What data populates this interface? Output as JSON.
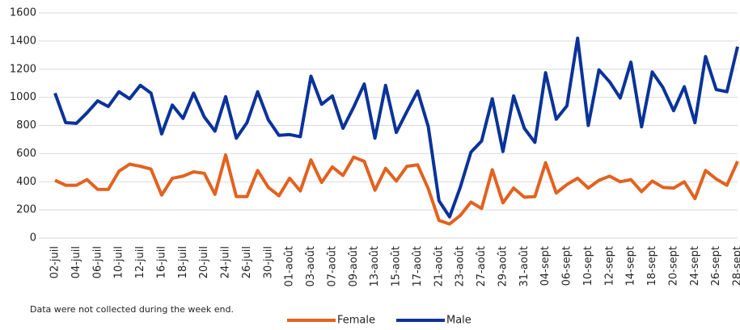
{
  "chart_data": {
    "type": "line",
    "categories": [
      "02-juil",
      null,
      "04-juil",
      null,
      "06-juil",
      null,
      "10-juil",
      null,
      "12-juil",
      null,
      "16-juil",
      null,
      "18-juil",
      null,
      "20-juil",
      null,
      "24-juil",
      null,
      "26-juil",
      null,
      "30-juil",
      null,
      "01-août",
      null,
      "03-août",
      null,
      "07-août",
      null,
      "09-août",
      null,
      "13-août",
      null,
      "15-août",
      null,
      "17-août",
      null,
      "21-août",
      null,
      "23-août",
      null,
      "27-août",
      null,
      "29-août",
      null,
      "31-août",
      null,
      "04-sept",
      null,
      "06-sept",
      null,
      "10-sept",
      null,
      "12-sept",
      null,
      "14-sept",
      null,
      "18-sept",
      null,
      "20-sept",
      null,
      "24-sept",
      null,
      "26-sept",
      null,
      "28-sept"
    ],
    "series": [
      {
        "name": "Female",
        "color": "#e2621f",
        "values": [
          410,
          375,
          375,
          415,
          345,
          345,
          475,
          525,
          510,
          490,
          305,
          425,
          440,
          470,
          460,
          310,
          590,
          295,
          295,
          480,
          360,
          300,
          425,
          335,
          555,
          395,
          505,
          445,
          575,
          545,
          340,
          495,
          405,
          510,
          520,
          350,
          125,
          100,
          160,
          255,
          210,
          485,
          250,
          355,
          290,
          295,
          535,
          320,
          380,
          425,
          355,
          410,
          440,
          400,
          415,
          330,
          405,
          360,
          355,
          400,
          280,
          480,
          420,
          375,
          545
        ]
      },
      {
        "name": "Male",
        "color": "#0a3399",
        "values": [
          1030,
          820,
          815,
          890,
          975,
          935,
          1040,
          990,
          1085,
          1030,
          740,
          945,
          850,
          1030,
          860,
          760,
          1005,
          710,
          820,
          1040,
          840,
          730,
          735,
          720,
          1150,
          950,
          1010,
          780,
          930,
          1095,
          710,
          1085,
          750,
          900,
          1045,
          790,
          265,
          150,
          360,
          610,
          690,
          990,
          615,
          1010,
          780,
          680,
          1175,
          845,
          940,
          1420,
          800,
          1195,
          1110,
          995,
          1250,
          790,
          1180,
          1070,
          905,
          1075,
          820,
          1290,
          1055,
          1040,
          1360
        ]
      }
    ],
    "ylim": [
      0,
      1600
    ],
    "yticks": [
      0,
      200,
      400,
      600,
      800,
      1000,
      1200,
      1400,
      1600
    ],
    "grid": true,
    "annotation": "Data were not collected during the week end.",
    "legend": "bottom"
  }
}
